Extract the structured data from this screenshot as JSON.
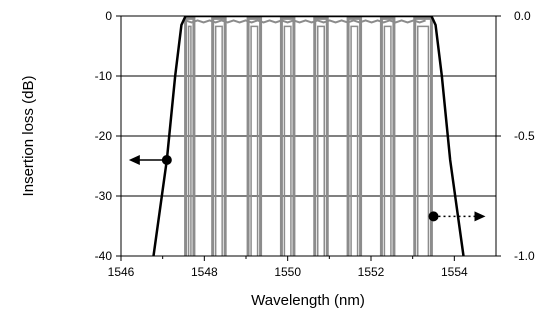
{
  "chart_data": {
    "type": "line",
    "xlabel": "Wavelength (nm)",
    "ylabel": "Insertion loss (dB)",
    "xlim": [
      1546,
      1555
    ],
    "ylim": [
      -40,
      0
    ],
    "y2lim": [
      -1.0,
      0.0
    ],
    "x_ticks": [
      "1546",
      "1548",
      "1550",
      "1552",
      "1554"
    ],
    "y_ticks": [
      "0",
      "-10",
      "-20",
      "-30",
      "-40"
    ],
    "y2_ticks": [
      "0.0",
      "-0.5",
      "-1.0"
    ],
    "grid": "horizontal",
    "legend": "none",
    "colors": {
      "left_axis_series": "#000000",
      "right_axis_series": "#8c8c8c"
    },
    "series": [
      {
        "axis": "left",
        "style": "solid-black",
        "x": [
          1546.78,
          1547.1,
          1547.3,
          1547.45,
          1547.55,
          1553.45,
          1553.55,
          1553.7,
          1553.9,
          1554.22
        ],
        "y": [
          -40,
          -24,
          -10,
          -1.5,
          0,
          0,
          -1.5,
          -10,
          -24,
          -40
        ]
      },
      {
        "axis": "right",
        "style": "grey-comb",
        "passbands": [
          [
            1547.55,
            1547.75
          ],
          [
            1548.2,
            1548.5
          ],
          [
            1549.05,
            1549.35
          ],
          [
            1549.85,
            1550.15
          ],
          [
            1550.65,
            1550.95
          ],
          [
            1551.45,
            1551.75
          ],
          [
            1552.25,
            1552.55
          ],
          [
            1553.05,
            1553.45
          ]
        ],
        "peak": -0.01,
        "floor": -1.0
      }
    ],
    "annotations": [
      {
        "type": "arrow",
        "axis": "left",
        "direction": "left",
        "style": "solid",
        "x": 1547.1,
        "y": -24
      },
      {
        "type": "arrow",
        "axis": "right",
        "direction": "right",
        "style": "dotted",
        "x": 1553.5,
        "y": -0.835
      }
    ]
  }
}
